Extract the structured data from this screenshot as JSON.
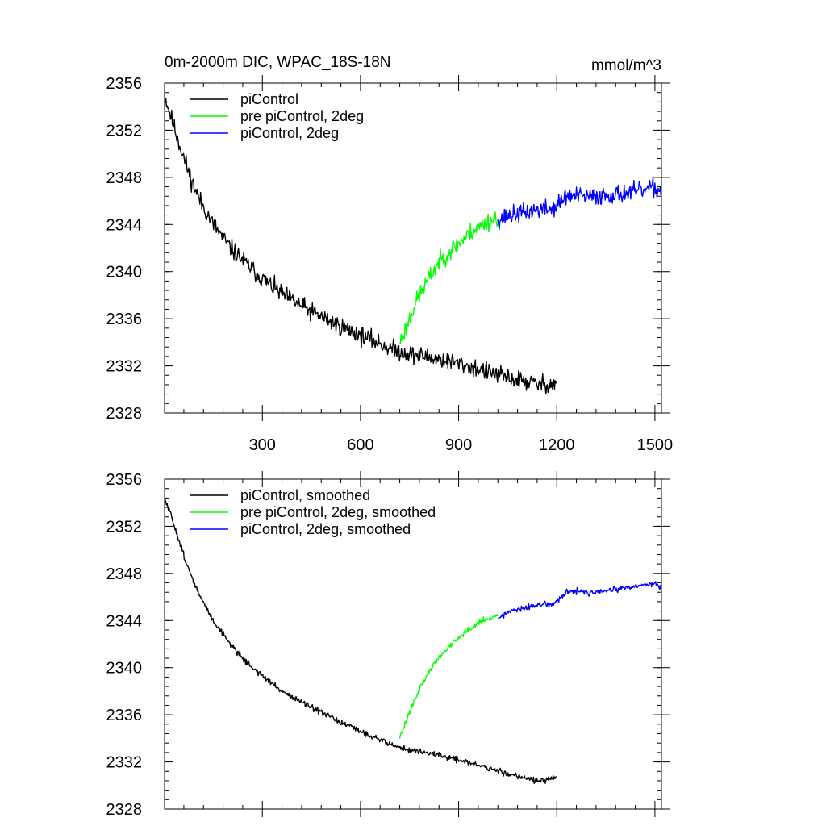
{
  "chart_data": [
    {
      "type": "line",
      "title": "0m-2000m DIC, WPAC_18S-18N",
      "units": "mmol/m^3",
      "xlim": [
        1,
        1520
      ],
      "ylim": [
        2328,
        2356
      ],
      "x_ticks": [
        300,
        600,
        900,
        1200,
        1500
      ],
      "x_tick_labels": [
        "300",
        "600",
        "900",
        "1200",
        "1500"
      ],
      "y_ticks": [
        2328,
        2332,
        2336,
        2340,
        2344,
        2348,
        2352,
        2356
      ],
      "y_tick_labels": [
        "2328",
        "2332",
        "2336",
        "2340",
        "2344",
        "2348",
        "2352",
        "2356"
      ],
      "legend_position": "top-left",
      "series": [
        {
          "name": "piControl",
          "color": "#000000",
          "noise": 0.55,
          "seed": 11,
          "points": [
            [
              1,
              2355.0
            ],
            [
              20,
              2353.2
            ],
            [
              50,
              2350.5
            ],
            [
              80,
              2348.0
            ],
            [
              110,
              2346.0
            ],
            [
              150,
              2344.0
            ],
            [
              200,
              2342.1
            ],
            [
              250,
              2340.7
            ],
            [
              300,
              2339.4
            ],
            [
              350,
              2338.3
            ],
            [
              400,
              2337.4
            ],
            [
              450,
              2336.6
            ],
            [
              500,
              2335.9
            ],
            [
              550,
              2335.2
            ],
            [
              600,
              2334.6
            ],
            [
              650,
              2334.0
            ],
            [
              700,
              2333.4
            ],
            [
              750,
              2333.0
            ],
            [
              800,
              2332.8
            ],
            [
              850,
              2332.5
            ],
            [
              900,
              2332.2
            ],
            [
              950,
              2331.8
            ],
            [
              1000,
              2331.4
            ],
            [
              1050,
              2331.0
            ],
            [
              1100,
              2330.7
            ],
            [
              1150,
              2330.4
            ],
            [
              1200,
              2330.5
            ]
          ]
        },
        {
          "name": "pre piControl, 2deg",
          "color": "#00ff00",
          "noise": 0.55,
          "seed": 23,
          "points": [
            [
              720,
              2334.0
            ],
            [
              740,
              2335.3
            ],
            [
              760,
              2336.8
            ],
            [
              780,
              2338.0
            ],
            [
              800,
              2339.0
            ],
            [
              830,
              2340.4
            ],
            [
              860,
              2341.4
            ],
            [
              900,
              2342.4
            ],
            [
              940,
              2343.4
            ],
            [
              980,
              2344.1
            ],
            [
              1020,
              2344.6
            ]
          ]
        },
        {
          "name": "piControl, 2deg",
          "color": "#0000ff",
          "noise": 0.55,
          "seed": 37,
          "points": [
            [
              1020,
              2344.4
            ],
            [
              1060,
              2344.8
            ],
            [
              1100,
              2345.0
            ],
            [
              1150,
              2345.3
            ],
            [
              1180,
              2345.3
            ],
            [
              1200,
              2345.6
            ],
            [
              1230,
              2346.4
            ],
            [
              1270,
              2346.4
            ],
            [
              1300,
              2346.3
            ],
            [
              1350,
              2346.5
            ],
            [
              1400,
              2346.6
            ],
            [
              1450,
              2346.8
            ],
            [
              1500,
              2347.1
            ],
            [
              1520,
              2346.8
            ]
          ]
        }
      ]
    },
    {
      "type": "line",
      "title": "",
      "xlim": [
        1,
        1520
      ],
      "ylim": [
        2328,
        2356
      ],
      "x_ticks": [
        300,
        600,
        900,
        1200,
        1500
      ],
      "y_ticks": [
        2328,
        2332,
        2336,
        2340,
        2344,
        2348,
        2352,
        2356
      ],
      "y_tick_labels": [
        "2328",
        "2332",
        "2336",
        "2340",
        "2344",
        "2348",
        "2352",
        "2356"
      ],
      "legend_position": "top-left",
      "series": [
        {
          "name": "piControl, smoothed",
          "color": "#000000",
          "noise": 0.18,
          "seed": 51,
          "points": [
            [
              1,
              2354.3
            ],
            [
              20,
              2353.0
            ],
            [
              50,
              2350.4
            ],
            [
              80,
              2347.9
            ],
            [
              110,
              2346.0
            ],
            [
              150,
              2344.0
            ],
            [
              200,
              2342.1
            ],
            [
              250,
              2340.5
            ],
            [
              300,
              2339.3
            ],
            [
              350,
              2338.2
            ],
            [
              400,
              2337.4
            ],
            [
              450,
              2336.6
            ],
            [
              500,
              2335.9
            ],
            [
              550,
              2335.2
            ],
            [
              600,
              2334.6
            ],
            [
              650,
              2334.0
            ],
            [
              700,
              2333.4
            ],
            [
              750,
              2333.0
            ],
            [
              800,
              2332.8
            ],
            [
              850,
              2332.5
            ],
            [
              900,
              2332.2
            ],
            [
              950,
              2331.8
            ],
            [
              1000,
              2331.4
            ],
            [
              1050,
              2331.0
            ],
            [
              1100,
              2330.7
            ],
            [
              1150,
              2330.3
            ],
            [
              1200,
              2330.7
            ]
          ]
        },
        {
          "name": "pre piControl, 2deg, smoothed",
          "color": "#00ff00",
          "noise": 0.18,
          "seed": 63,
          "points": [
            [
              720,
              2334.0
            ],
            [
              740,
              2335.5
            ],
            [
              760,
              2337.0
            ],
            [
              780,
              2338.2
            ],
            [
              800,
              2339.2
            ],
            [
              830,
              2340.5
            ],
            [
              860,
              2341.5
            ],
            [
              900,
              2342.6
            ],
            [
              940,
              2343.5
            ],
            [
              980,
              2344.1
            ],
            [
              1020,
              2344.4
            ]
          ]
        },
        {
          "name": "piControl, 2deg, smoothed",
          "color": "#0000ff",
          "noise": 0.18,
          "seed": 77,
          "points": [
            [
              1020,
              2344.2
            ],
            [
              1060,
              2344.8
            ],
            [
              1100,
              2345.0
            ],
            [
              1150,
              2345.4
            ],
            [
              1180,
              2345.3
            ],
            [
              1200,
              2345.6
            ],
            [
              1230,
              2346.4
            ],
            [
              1270,
              2346.5
            ],
            [
              1300,
              2346.3
            ],
            [
              1350,
              2346.5
            ],
            [
              1400,
              2346.7
            ],
            [
              1450,
              2346.9
            ],
            [
              1500,
              2347.2
            ],
            [
              1520,
              2346.8
            ]
          ]
        }
      ]
    }
  ]
}
